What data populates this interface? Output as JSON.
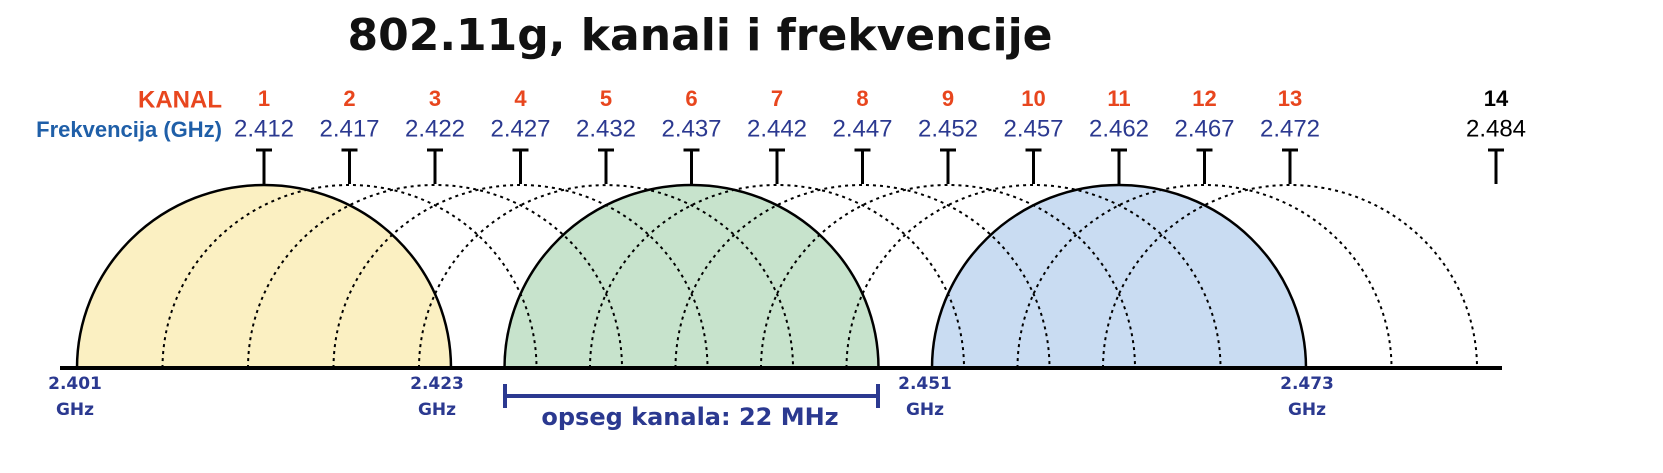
{
  "title": "802.11g, kanali i frekvencije",
  "row_labels": {
    "channel": "KANAL",
    "frequency": "Frekvencija (GHz)"
  },
  "channels": [
    {
      "number": "1",
      "frequency": "2.412"
    },
    {
      "number": "2",
      "frequency": "2.417"
    },
    {
      "number": "3",
      "frequency": "2.422"
    },
    {
      "number": "4",
      "frequency": "2.427"
    },
    {
      "number": "5",
      "frequency": "2.432"
    },
    {
      "number": "6",
      "frequency": "2.437"
    },
    {
      "number": "7",
      "frequency": "2.442"
    },
    {
      "number": "8",
      "frequency": "2.447"
    },
    {
      "number": "9",
      "frequency": "2.452"
    },
    {
      "number": "10",
      "frequency": "2.457"
    },
    {
      "number": "11",
      "frequency": "2.462"
    },
    {
      "number": "12",
      "frequency": "2.467"
    },
    {
      "number": "13",
      "frequency": "2.472"
    },
    {
      "number": "14",
      "frequency": "2.484"
    }
  ],
  "edge_labels": [
    {
      "value": "2.401",
      "unit": "GHz"
    },
    {
      "value": "2.423",
      "unit": "GHz"
    },
    {
      "value": "2.451",
      "unit": "GHz"
    },
    {
      "value": "2.473",
      "unit": "GHz"
    }
  ],
  "bandwidth_label": "opseg kanala: 22 MHz"
}
